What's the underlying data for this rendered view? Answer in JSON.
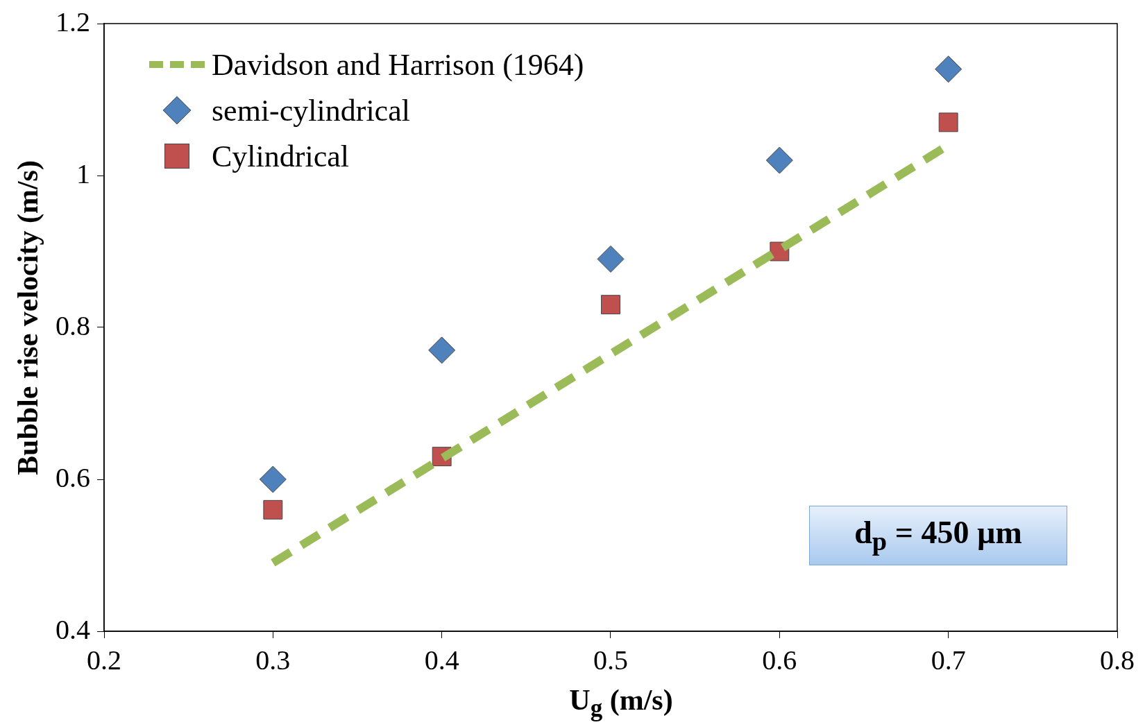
{
  "chart_data": {
    "type": "scatter",
    "xlabel": "U$_{g}$ (m/s)",
    "ylabel": "Bubble rise velocity (m/s)",
    "xlim": [
      0.2,
      0.8
    ],
    "xticks": [
      0.2,
      0.3,
      0.4,
      0.5,
      0.6,
      0.7,
      0.8
    ],
    "ylim": [
      0.4,
      1.2
    ],
    "yticks": [
      0.4,
      0.6,
      0.8,
      1,
      1.2
    ],
    "grid": false,
    "legend": "top left",
    "annotations": [
      "d$_{p}$ = 450 µm"
    ],
    "series": [
      {
        "name": "Davidson and Harrison (1964)",
        "type": "line",
        "color": "#9bbb59",
        "line_style": "dashed",
        "marker": "none",
        "x": [
          0.3,
          0.7
        ],
        "values": [
          0.49,
          1.04
        ]
      },
      {
        "name": "semi-cylindrical",
        "type": "scatter",
        "color": "#4f81bd",
        "marker": "diamond",
        "x": [
          0.3,
          0.4,
          0.5,
          0.6,
          0.7
        ],
        "values": [
          0.6,
          0.77,
          0.89,
          1.02,
          1.14
        ]
      },
      {
        "name": "Cylindrical",
        "type": "scatter",
        "color": "#c0504d",
        "marker": "square",
        "x": [
          0.3,
          0.4,
          0.5,
          0.6,
          0.7
        ],
        "values": [
          0.56,
          0.63,
          0.83,
          0.9,
          1.07
        ]
      }
    ]
  }
}
